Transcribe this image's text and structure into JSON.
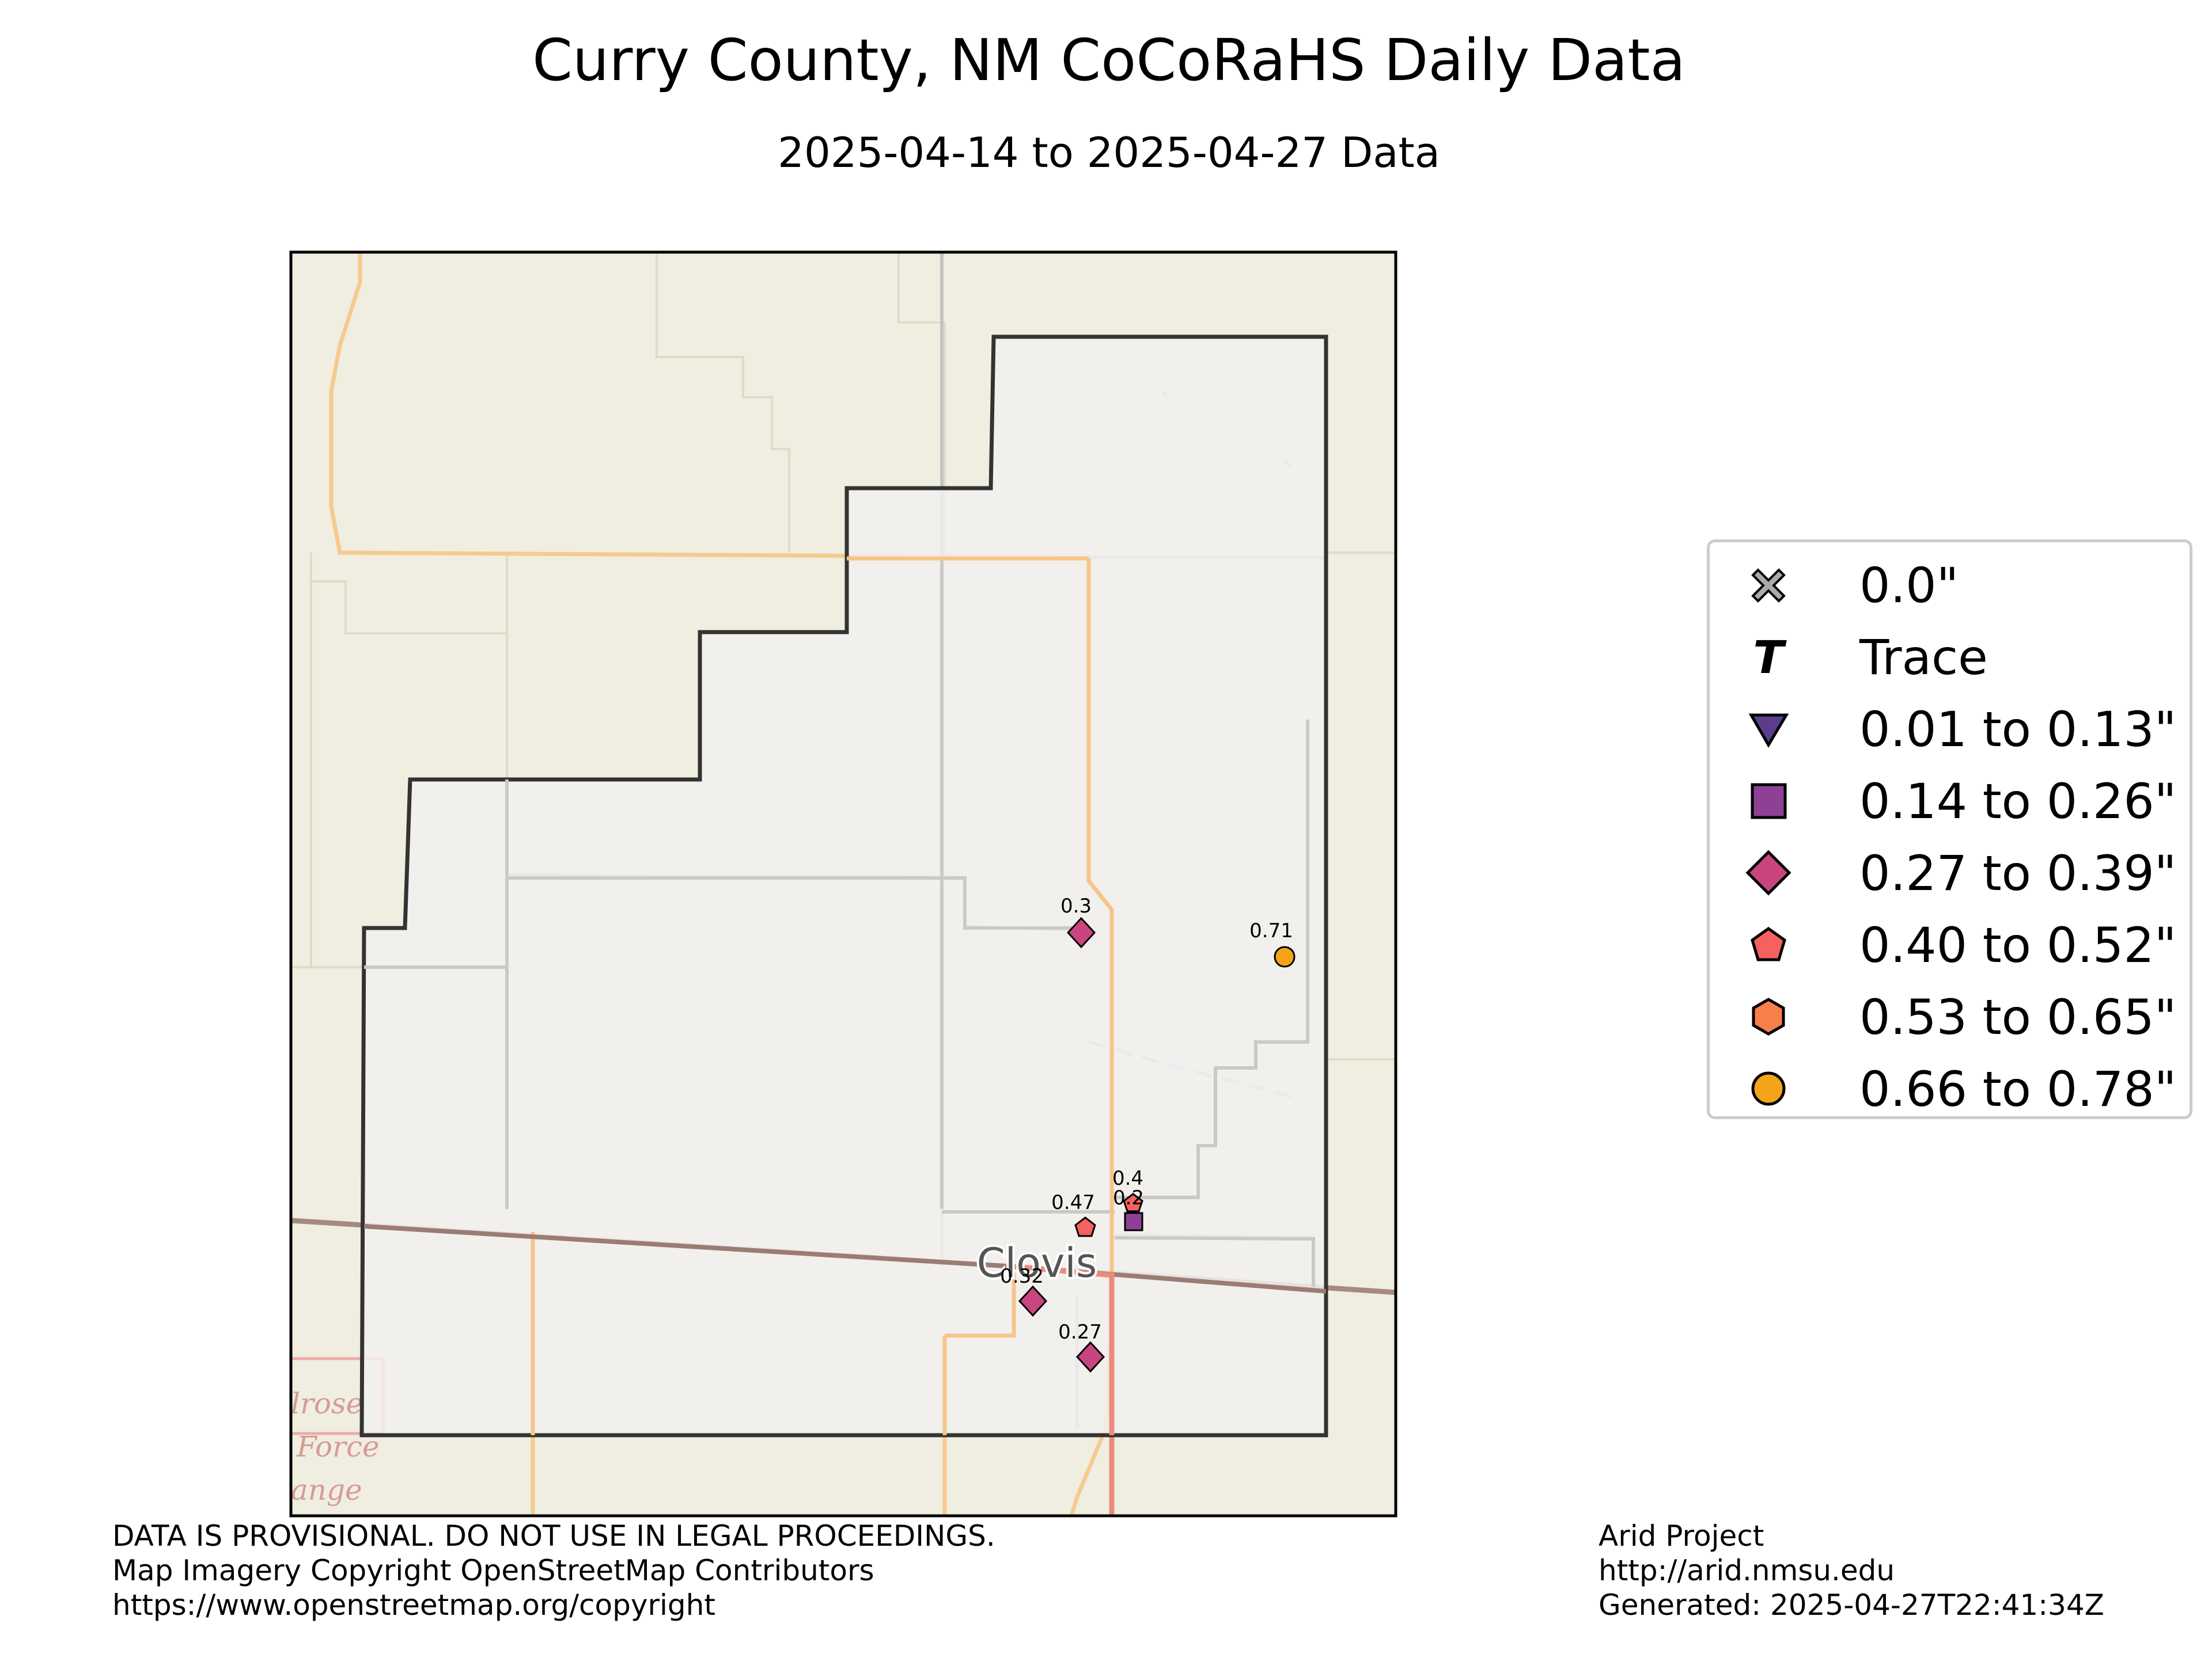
{
  "title": "Curry County, NM CoCoRaHS Daily Data",
  "subtitle": "2025-04-14 to 2025-04-27 Data",
  "map": {
    "place_label": "Clovis",
    "partial_labels": [
      "lrose",
      "Force",
      "ange"
    ],
    "stations": [
      {
        "value": "0.3",
        "category": "0.27 to 0.39\"",
        "marker": "diamond",
        "color": "#c9457f"
      },
      {
        "value": "0.71",
        "category": "0.66 to 0.78\"",
        "marker": "circle",
        "color": "#f5a419"
      },
      {
        "value": "0.4",
        "category": "0.40 to 0.52\"",
        "marker": "pentagon",
        "color": "#f56060"
      },
      {
        "value": "0.2",
        "category": "0.14 to 0.26\"",
        "marker": "square",
        "color": "#8e4194"
      },
      {
        "value": "0.47",
        "category": "0.40 to 0.52\"",
        "marker": "pentagon",
        "color": "#f56060"
      },
      {
        "value": "0.32",
        "category": "0.27 to 0.39\"",
        "marker": "diamond",
        "color": "#c9457f"
      },
      {
        "value": "0.27",
        "category": "0.27 to 0.39\"",
        "marker": "diamond",
        "color": "#c9457f"
      }
    ]
  },
  "legend": [
    {
      "label": "0.0\"",
      "marker": "x-mark",
      "color": "#aaaaaa"
    },
    {
      "label": "Trace",
      "marker": "t-letter",
      "color": "#000000"
    },
    {
      "label": "0.01 to 0.13\"",
      "marker": "triangle-down",
      "color": "#5c3d8c"
    },
    {
      "label": "0.14 to 0.26\"",
      "marker": "square",
      "color": "#8e4194"
    },
    {
      "label": "0.27 to 0.39\"",
      "marker": "diamond",
      "color": "#c9457f"
    },
    {
      "label": "0.40 to 0.52\"",
      "marker": "pentagon",
      "color": "#f56060"
    },
    {
      "label": "0.53 to 0.65\"",
      "marker": "hexagon",
      "color": "#f7804a"
    },
    {
      "label": "0.66 to 0.78\"",
      "marker": "circle",
      "color": "#f5a419"
    }
  ],
  "footer": {
    "left": [
      "DATA IS PROVISIONAL. DO NOT USE IN LEGAL PROCEEDINGS.",
      "Map Imagery Copyright OpenStreetMap Contributors",
      "https://www.openstreetmap.org/copyright"
    ],
    "right": [
      "Arid Project",
      "http://arid.nmsu.edu",
      "Generated: 2025-04-27T22:41:34Z"
    ]
  }
}
